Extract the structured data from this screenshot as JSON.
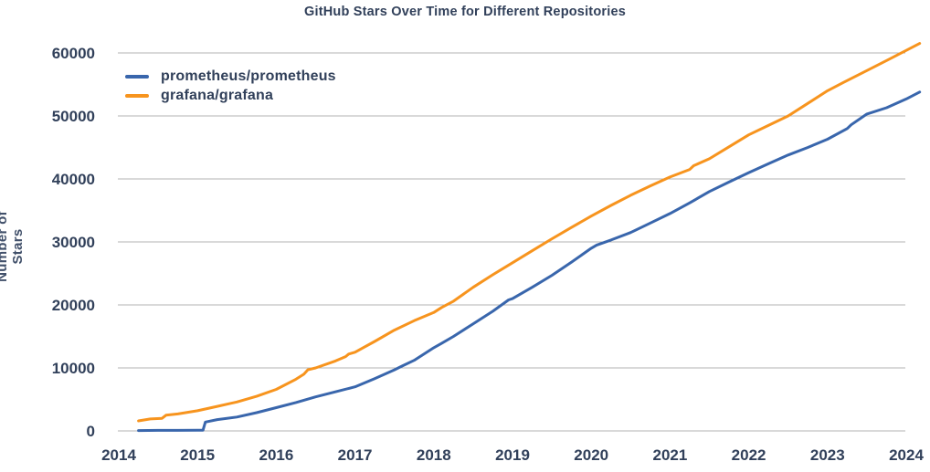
{
  "colors": {
    "text": "#31405A",
    "grid": "#B3B3B3",
    "background": "#FFFFFF"
  },
  "chart_data": {
    "type": "line",
    "title": "GitHub Stars Over Time for Different Repositories",
    "xlabel": "",
    "ylabel": "Number of Stars",
    "x_ticks": [
      2014,
      2015,
      2016,
      2017,
      2018,
      2019,
      2020,
      2021,
      2022,
      2023,
      2024
    ],
    "y_ticks": [
      0,
      10000,
      20000,
      30000,
      40000,
      50000,
      60000
    ],
    "xlim": [
      2014,
      2024.2
    ],
    "ylim": [
      0,
      60000
    ],
    "grid": "horizontal-only",
    "legend_position": "upper-left-inside",
    "series": [
      {
        "name": "prometheus/prometheus",
        "color": "#3966AC",
        "x": [
          2014.25,
          2014.5,
          2014.75,
          2015.0,
          2015.07,
          2015.1,
          2015.25,
          2015.5,
          2015.75,
          2016.0,
          2016.25,
          2016.5,
          2016.75,
          2017.0,
          2017.25,
          2017.5,
          2017.6,
          2017.75,
          2018.0,
          2018.1,
          2018.25,
          2018.5,
          2018.75,
          2018.95,
          2019.0,
          2019.25,
          2019.5,
          2019.75,
          2020.0,
          2020.07,
          2020.25,
          2020.5,
          2020.75,
          2021.0,
          2021.25,
          2021.5,
          2021.75,
          2022.0,
          2022.25,
          2022.5,
          2022.75,
          2023.0,
          2023.25,
          2023.3,
          2023.5,
          2023.75,
          2024.0,
          2024.17
        ],
        "y": [
          60,
          80,
          90,
          100,
          120,
          1400,
          1800,
          2200,
          2900,
          3700,
          4500,
          5400,
          6200,
          7000,
          8300,
          9700,
          10300,
          11200,
          13200,
          13900,
          15000,
          17000,
          19000,
          20800,
          21000,
          22800,
          24700,
          26800,
          29000,
          29500,
          30300,
          31500,
          33000,
          34500,
          36200,
          38000,
          39500,
          41000,
          42400,
          43800,
          45000,
          46300,
          48000,
          48600,
          50300,
          51300,
          52700,
          53800
        ]
      },
      {
        "name": "grafana/grafana",
        "color": "#F7941E",
        "x": [
          2014.25,
          2014.4,
          2014.55,
          2014.6,
          2014.75,
          2015.0,
          2015.25,
          2015.5,
          2015.75,
          2016.0,
          2016.25,
          2016.35,
          2016.4,
          2016.5,
          2016.75,
          2016.88,
          2016.92,
          2017.0,
          2017.25,
          2017.5,
          2017.75,
          2018.0,
          2018.1,
          2018.25,
          2018.5,
          2018.75,
          2019.0,
          2019.25,
          2019.5,
          2019.75,
          2020.0,
          2020.25,
          2020.5,
          2020.75,
          2021.0,
          2021.25,
          2021.3,
          2021.5,
          2021.75,
          2022.0,
          2022.25,
          2022.5,
          2022.75,
          2023.0,
          2023.2,
          2023.5,
          2023.75,
          2024.0,
          2024.17
        ],
        "y": [
          1600,
          1900,
          2000,
          2500,
          2700,
          3200,
          3900,
          4600,
          5500,
          6600,
          8200,
          9000,
          9700,
          10000,
          11100,
          11800,
          12200,
          12500,
          14200,
          16000,
          17500,
          18800,
          19600,
          20600,
          22800,
          24800,
          26700,
          28600,
          30500,
          32300,
          34100,
          35800,
          37400,
          38900,
          40300,
          41500,
          42100,
          43200,
          45100,
          47000,
          48500,
          50000,
          52000,
          54000,
          55300,
          57200,
          58800,
          60400,
          61500
        ]
      }
    ]
  }
}
